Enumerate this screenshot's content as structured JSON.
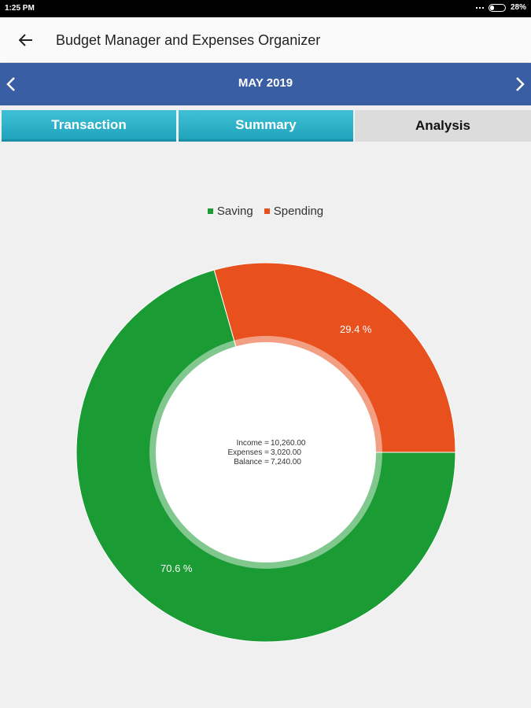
{
  "status": {
    "time": "1:25 PM",
    "battery": "28%"
  },
  "app": {
    "title": "Budget Manager and Expenses Organizer"
  },
  "month": {
    "label": "MAY 2019"
  },
  "tabs": [
    {
      "label": "Transaction"
    },
    {
      "label": "Summary"
    },
    {
      "label": "Analysis"
    }
  ],
  "chart_data": {
    "type": "pie",
    "categories": [
      "Saving",
      "Spending"
    ],
    "values": [
      70.6,
      29.4
    ],
    "labels": [
      "70.6 %",
      "29.4 %"
    ],
    "colors": [
      "#1a9b34",
      "#e8501e"
    ],
    "legend_position": "top-center",
    "center": {
      "income_key": "Income =",
      "income_val": "10,260.00",
      "expenses_key": "Expenses =",
      "expenses_val": "3,020.00",
      "balance_key": "Balance =",
      "balance_val": "7,240.00"
    }
  }
}
